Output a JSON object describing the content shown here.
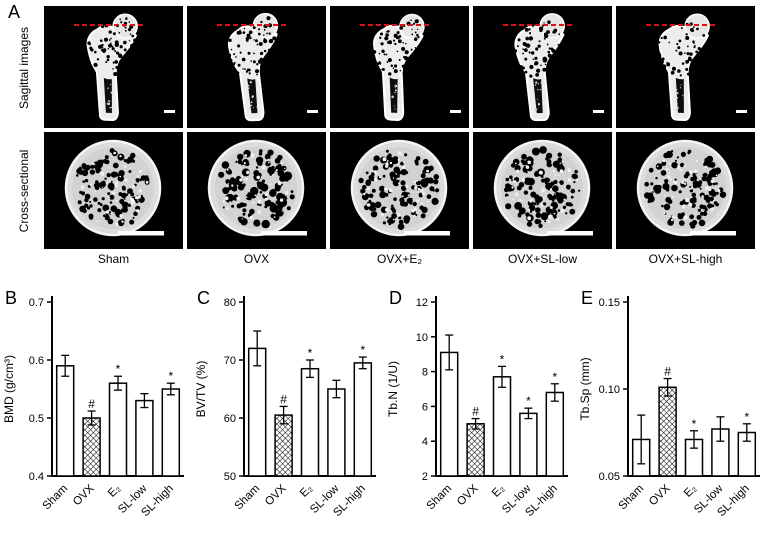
{
  "figure": {
    "panel_a": {
      "letter": "A",
      "row_labels": [
        "Sagittal images",
        "Cross-sectional"
      ],
      "group_labels": [
        "Sham",
        "OVX",
        "OVX+E₂",
        "OVX+SL-low",
        "OVX+SL-high"
      ]
    }
  },
  "chart_data": [
    {
      "type": "bar",
      "panel": "B",
      "ylabel": "BMD (g/cm³)",
      "categories": [
        "Sham",
        "OVX",
        "E₂",
        "SL-low",
        "SL-high"
      ],
      "values": [
        0.59,
        0.5,
        0.56,
        0.53,
        0.55
      ],
      "errors": [
        0.018,
        0.012,
        0.012,
        0.012,
        0.01
      ],
      "annotations": [
        "",
        "#",
        "*",
        "",
        "*"
      ],
      "hatched": [
        false,
        true,
        false,
        false,
        false
      ],
      "ylim": [
        0.4,
        0.7
      ],
      "yticks": [
        "0.4",
        "0.5",
        "0.6",
        "0.7"
      ],
      "legend": "none",
      "grid": false
    },
    {
      "type": "bar",
      "panel": "C",
      "ylabel": "BV/TV (%)",
      "categories": [
        "Sham",
        "OVX",
        "E₂",
        "SL-low",
        "SL-high"
      ],
      "values": [
        72,
        60.5,
        68.5,
        65,
        69.5
      ],
      "errors": [
        3.0,
        1.5,
        1.5,
        1.5,
        1.0
      ],
      "annotations": [
        "",
        "#",
        "*",
        "",
        "*"
      ],
      "hatched": [
        false,
        true,
        false,
        false,
        false
      ],
      "ylim": [
        50,
        80
      ],
      "yticks": [
        "50",
        "60",
        "70",
        "80"
      ],
      "legend": "none",
      "grid": false
    },
    {
      "type": "bar",
      "panel": "D",
      "ylabel": "Tb.N (1/U)",
      "categories": [
        "Sham",
        "OVX",
        "E₂",
        "SL-low",
        "SL-high"
      ],
      "values": [
        9.1,
        5.0,
        7.7,
        5.6,
        6.8
      ],
      "errors": [
        1.0,
        0.3,
        0.6,
        0.3,
        0.5
      ],
      "annotations": [
        "",
        "#",
        "*",
        "*",
        "*"
      ],
      "hatched": [
        false,
        true,
        false,
        false,
        false
      ],
      "ylim": [
        2,
        12
      ],
      "yticks": [
        "2",
        "4",
        "6",
        "8",
        "10",
        "12"
      ],
      "legend": "none",
      "grid": false
    },
    {
      "type": "bar",
      "panel": "E",
      "ylabel": "Tb.Sp (mm)",
      "categories": [
        "Sham",
        "OVX",
        "E₂",
        "SL-low",
        "SL-high"
      ],
      "values": [
        0.071,
        0.101,
        0.071,
        0.077,
        0.075
      ],
      "errors": [
        0.014,
        0.005,
        0.005,
        0.007,
        0.005
      ],
      "annotations": [
        "",
        "#",
        "*",
        "",
        "*"
      ],
      "hatched": [
        false,
        true,
        false,
        false,
        false
      ],
      "ylim": [
        0.05,
        0.15
      ],
      "yticks": [
        "0.05",
        "0.10",
        "0.15"
      ],
      "legend": "none",
      "grid": false
    }
  ]
}
